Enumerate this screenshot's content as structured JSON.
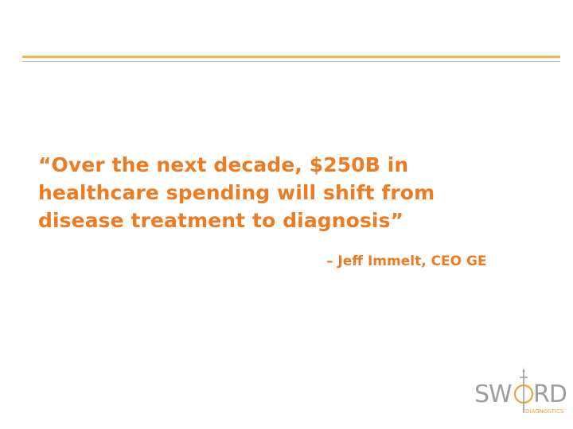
{
  "slide": {
    "quote_lines": [
      "“Over the next decade, $250B in",
      "healthcare spending will shift from",
      "disease treatment to diagnosis”"
    ],
    "attribution": "– Jeff Immelt, CEO GE"
  },
  "logo": {
    "word_left": "SW",
    "word_right": "RD",
    "subtitle": "DIAGNOSTICS",
    "colors": {
      "word": "#9e9e9e",
      "accent": "#f0a23a"
    }
  },
  "colors": {
    "quote_text": "#ec7b22",
    "rule_accent": "#f0b64c",
    "rule_gray": "#b9b9b9"
  }
}
